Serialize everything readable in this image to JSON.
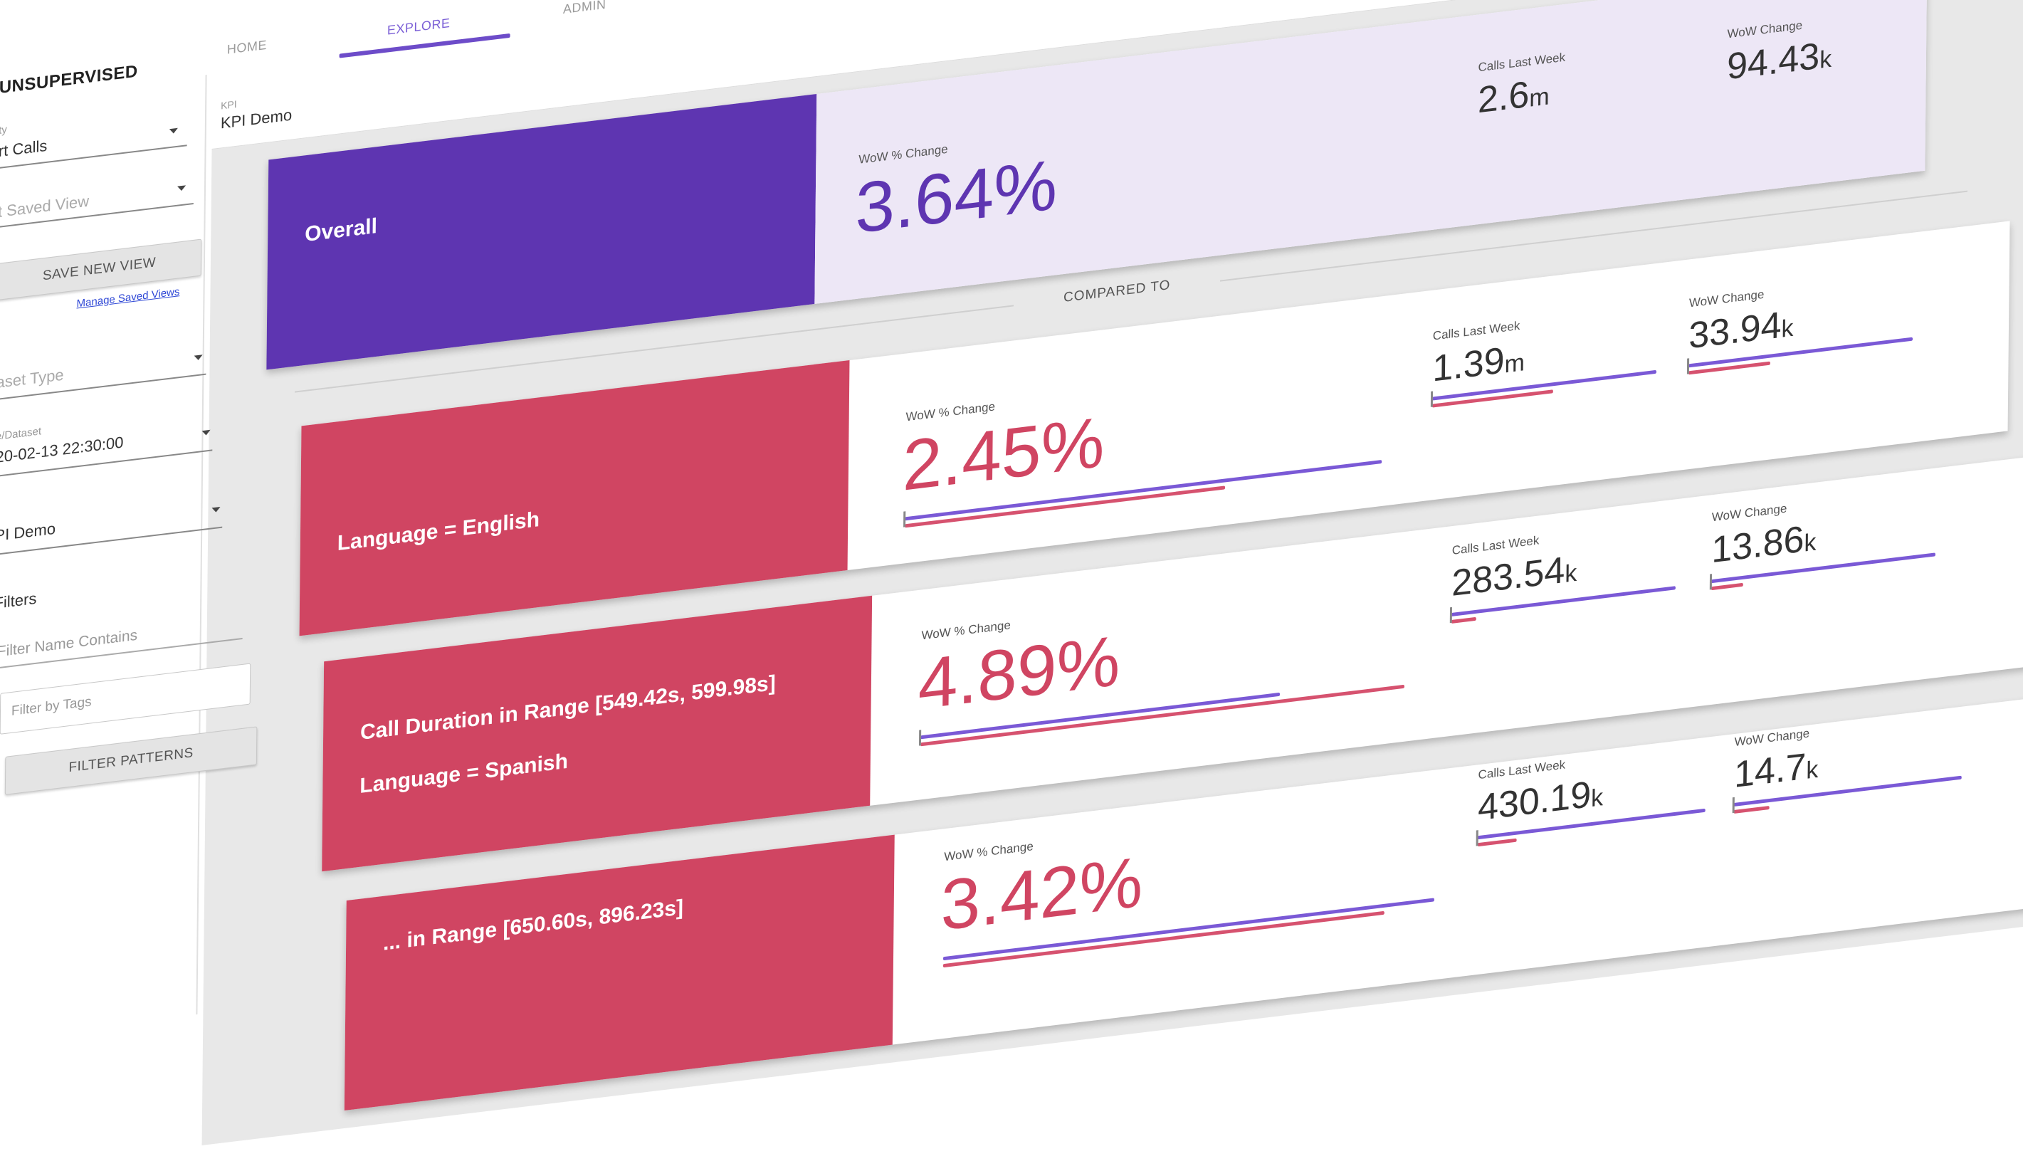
{
  "brand": "UNSUPERVISED",
  "nav": {
    "tabs": [
      {
        "label": "HOME"
      },
      {
        "label": "EXPLORE"
      },
      {
        "label": "ADMIN"
      }
    ],
    "active_tab": "EXPLORE"
  },
  "sidebar": {
    "entity_label": "ty",
    "entity_value": "rt Calls",
    "saved_view_placeholder": "t Saved View",
    "save_new_view": "SAVE NEW VIEW",
    "manage_saved_views": "Manage Saved Views",
    "dataset_type_placeholder": "aset Type",
    "date_label": "e/Dataset",
    "date_value": "20-02-13 22:30:00",
    "kpi_label": "I",
    "kpi_value": "PI Demo",
    "filters_heading": "Filters",
    "filter_name_placeholder": "Filter Name Contains",
    "filter_tags_placeholder": "Filter by Tags",
    "filter_patterns": "FILTER PATTERNS"
  },
  "header": {
    "kpi_caption": "KPI",
    "kpi_title": "KPI Demo",
    "calls_caption": "Calls Last Week",
    "calls_value": "2.6",
    "calls_unit": "m",
    "wow_caption": "WoW Change",
    "wow_value": "94.43",
    "wow_unit": "k"
  },
  "compared_to": "COMPARED TO",
  "colors": {
    "purple": "#5e35b1",
    "red": "#d04562",
    "lavender": "#ede7f6"
  },
  "cards": [
    {
      "label_lines": [
        "Overall",
        ""
      ],
      "pct_caption": "WoW % Change",
      "pct": "3.64%",
      "calls_caption": "Calls Last Week",
      "calls": "2.6",
      "calls_unit": "m",
      "change_caption": "WoW Change",
      "change": "94.43",
      "change_unit": "k"
    },
    {
      "label_lines": [
        "Language = English",
        ""
      ],
      "pct_caption": "WoW % Change",
      "pct": "2.45%",
      "calls_caption": "Calls Last Week",
      "calls": "1.39",
      "calls_unit": "m",
      "change_caption": "WoW Change",
      "change": "33.94",
      "change_unit": "k"
    },
    {
      "label_lines": [
        "Call Duration in Range [549.42s, 599.98s]",
        "Language = Spanish"
      ],
      "pct_caption": "WoW % Change",
      "pct": "4.89%",
      "calls_caption": "Calls Last Week",
      "calls": "283.54",
      "calls_unit": "k",
      "change_caption": "WoW Change",
      "change": "13.86",
      "change_unit": "k"
    },
    {
      "label_lines": [
        "... in Range [650.60s, 896.23s]",
        ""
      ],
      "pct_caption": "WoW % Change",
      "pct": "3.42%",
      "calls_caption": "Calls Last Week",
      "calls": "430.19",
      "calls_unit": "k",
      "change_caption": "WoW Change",
      "change": "14.7",
      "change_unit": "k"
    }
  ]
}
